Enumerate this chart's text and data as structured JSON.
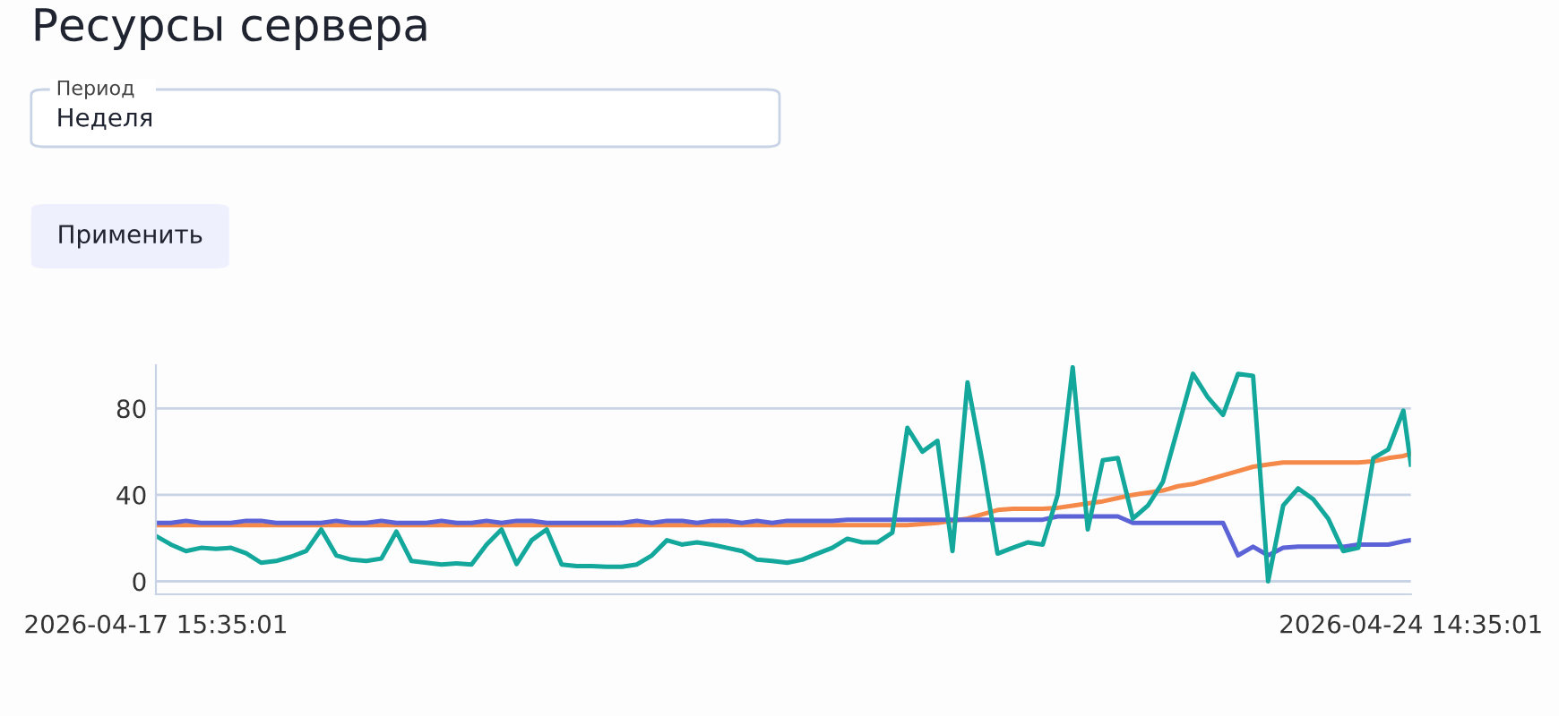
{
  "chart_data": {
    "type": "line",
    "title": "Ресурсы сервера",
    "annotations": [
      "Период",
      "Неделя",
      "Применить"
    ],
    "x": [
      "2026-04-17T15:35",
      "2026-04-17T17:35",
      "2026-04-17T19:35",
      "2026-04-17T21:35",
      "2026-04-17T23:35",
      "2026-04-18T01:35",
      "2026-04-18T03:35",
      "2026-04-18T05:35",
      "2026-04-18T07:35",
      "2026-04-18T09:35",
      "2026-04-18T11:35",
      "2026-04-18T13:35",
      "2026-04-18T15:35",
      "2026-04-18T17:35",
      "2026-04-18T19:35",
      "2026-04-18T21:35",
      "2026-04-18T23:35",
      "2026-04-19T01:35",
      "2026-04-19T03:35",
      "2026-04-19T05:35",
      "2026-04-19T07:35",
      "2026-04-19T09:35",
      "2026-04-19T11:35",
      "2026-04-19T13:35",
      "2026-04-19T15:35",
      "2026-04-19T17:35",
      "2026-04-19T19:35",
      "2026-04-19T21:35",
      "2026-04-19T23:35",
      "2026-04-20T01:35",
      "2026-04-20T03:35",
      "2026-04-20T05:35",
      "2026-04-20T07:35",
      "2026-04-20T09:35",
      "2026-04-20T11:35",
      "2026-04-20T13:35",
      "2026-04-20T15:35",
      "2026-04-20T17:35",
      "2026-04-20T19:35",
      "2026-04-20T21:35",
      "2026-04-20T23:35",
      "2026-04-21T01:35",
      "2026-04-21T03:35",
      "2026-04-21T05:35",
      "2026-04-21T07:35",
      "2026-04-21T09:35",
      "2026-04-21T11:35",
      "2026-04-21T13:35",
      "2026-04-21T15:35",
      "2026-04-21T17:35",
      "2026-04-21T19:35",
      "2026-04-21T21:35",
      "2026-04-21T23:35",
      "2026-04-22T01:35",
      "2026-04-22T03:35",
      "2026-04-22T05:35",
      "2026-04-22T07:35",
      "2026-04-22T09:35",
      "2026-04-22T11:35",
      "2026-04-22T13:35",
      "2026-04-22T15:35",
      "2026-04-22T17:35",
      "2026-04-22T19:35",
      "2026-04-22T21:35",
      "2026-04-22T23:35",
      "2026-04-23T01:35",
      "2026-04-23T03:35",
      "2026-04-23T05:35",
      "2026-04-23T07:35",
      "2026-04-23T09:35",
      "2026-04-23T11:35",
      "2026-04-23T13:35",
      "2026-04-23T15:35",
      "2026-04-23T17:35",
      "2026-04-23T19:35",
      "2026-04-23T21:35",
      "2026-04-23T23:35",
      "2026-04-24T01:35",
      "2026-04-24T03:35",
      "2026-04-24T05:35",
      "2026-04-24T07:35",
      "2026-04-24T09:35",
      "2026-04-24T11:35",
      "2026-04-24T13:35",
      "2026-04-24T14:35"
    ],
    "series": [
      {
        "color": "#f4894a",
        "values": [
          26,
          26,
          26,
          26,
          26,
          26,
          26,
          26,
          26,
          26,
          26,
          26,
          26,
          26,
          26,
          26,
          26,
          26,
          26,
          26,
          26,
          26,
          26,
          26,
          26,
          26,
          26,
          26,
          26,
          26,
          26,
          26,
          26,
          26,
          26,
          26,
          26,
          26,
          26,
          26,
          26,
          26,
          26,
          26,
          26,
          26,
          26,
          26,
          26,
          26,
          26,
          26.5,
          27,
          28,
          29,
          31,
          33,
          33.5,
          33.5,
          33.5,
          34,
          35,
          36,
          37,
          38.5,
          40,
          41,
          42,
          44,
          45,
          47,
          49,
          51,
          53,
          54,
          55,
          55,
          55,
          55,
          55,
          55,
          55.5,
          57,
          58,
          59
        ]
      },
      {
        "color": "#5b63d6",
        "values": [
          27,
          27,
          28,
          27,
          27,
          27,
          28,
          28,
          27,
          27,
          27,
          27,
          28,
          27,
          27,
          28,
          27,
          27,
          27,
          28,
          27,
          27,
          28,
          27,
          28,
          28,
          27,
          27,
          27,
          27,
          27,
          27,
          28,
          27,
          28,
          28,
          27,
          28,
          28,
          27,
          28,
          27,
          28,
          28,
          28,
          28,
          28.5,
          28.5,
          28.5,
          28.5,
          28.5,
          28.5,
          28.5,
          28.5,
          28.5,
          28.5,
          28.5,
          28.5,
          28.5,
          28.5,
          30,
          30,
          30,
          30,
          30,
          27,
          27,
          27,
          27,
          27,
          27,
          27,
          12,
          16,
          12,
          15.5,
          16,
          16,
          16,
          16,
          17,
          17,
          17,
          18.5,
          19
        ]
      },
      {
        "color": "#14a89d",
        "values": [
          21,
          17,
          14,
          15.5,
          15,
          15.5,
          13,
          8.6,
          9.4,
          11.4,
          14,
          24,
          12,
          10,
          9.4,
          10.5,
          23,
          9.4,
          8.6,
          7.8,
          8.3,
          7.8,
          17,
          24,
          8,
          19,
          24,
          7.8,
          7,
          7,
          6.7,
          6.7,
          7.8,
          12,
          19,
          17,
          18,
          17,
          15.5,
          14,
          10,
          9.4,
          8.6,
          10,
          12.8,
          15.5,
          19.7,
          18,
          18,
          22.5,
          71,
          60,
          65,
          14,
          92,
          55,
          12.8,
          15.5,
          18,
          17,
          40,
          99,
          24,
          56,
          57,
          29,
          35,
          46,
          71,
          96,
          85,
          77,
          96,
          95,
          0,
          35,
          43,
          38,
          29,
          14,
          15.5,
          57,
          61,
          79,
          54
        ]
      }
    ],
    "xlim": [
      "2026-04-17T15:35",
      "2026-04-24T14:35"
    ],
    "xticks": [
      {
        "value": "2026-04-17T15:35",
        "label": "2026-04-17 15:35:01"
      },
      {
        "value": "2026-04-24T14:35",
        "label": "2026-04-24 14:35:01"
      }
    ],
    "ylim": [
      -6,
      100
    ],
    "yticks": [
      0,
      40,
      80
    ],
    "grid": "y",
    "legend": false,
    "marker": "none",
    "line_style": "solid"
  }
}
